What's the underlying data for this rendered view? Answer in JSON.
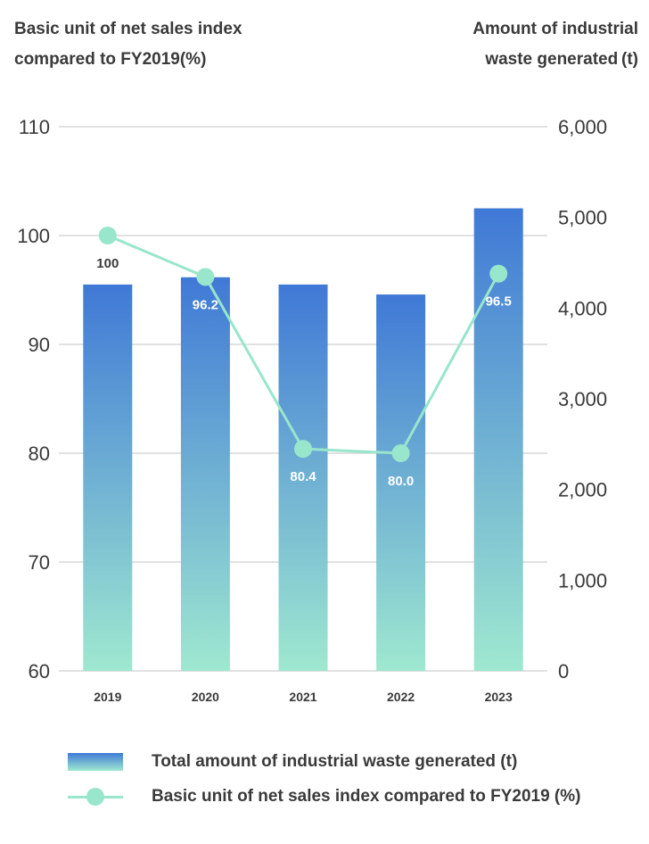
{
  "chart_data": {
    "type": "bar",
    "categories": [
      "2019",
      "2020",
      "2021",
      "2022",
      "2023"
    ],
    "series": [
      {
        "name": "Total amount of industrial waste generated (t)",
        "type": "bar",
        "axis": "right",
        "values": [
          4260,
          4340,
          4260,
          4150,
          5100
        ],
        "color_top": "#3f79d6",
        "color_bottom": "#9fe8d0"
      },
      {
        "name": "Basic unit of net sales index compared to FY2019 (%)",
        "type": "line",
        "axis": "left",
        "values": [
          100,
          96.2,
          80.4,
          80.0,
          96.5
        ],
        "labels": [
          "100",
          "96.2",
          "80.4",
          "80.0",
          "96.5"
        ],
        "color": "#98e6cb"
      }
    ],
    "left_axis": {
      "title_line1": "Basic unit of net sales index",
      "title_line2": "compared to FY2019(%)",
      "range": [
        60,
        110
      ],
      "ticks": [
        "60",
        "70",
        "80",
        "90",
        "100",
        "110"
      ],
      "tick_values": [
        60,
        70,
        80,
        90,
        100,
        110
      ]
    },
    "right_axis": {
      "title_line1": "Amount of industrial",
      "title_line2": "waste generated (t)",
      "range": [
        0,
        6000
      ],
      "ticks": [
        "0",
        "1,000",
        "2,000",
        "3,000",
        "4,000",
        "5,000",
        "6,000"
      ],
      "tick_values": [
        0,
        1000,
        2000,
        3000,
        4000,
        5000,
        6000
      ]
    },
    "grid": true,
    "legend": {
      "placement": "bottom",
      "bar_label": "Total amount of industrial waste generated (t)",
      "line_label": "Basic unit of net sales index compared to FY2019 (%)"
    }
  }
}
